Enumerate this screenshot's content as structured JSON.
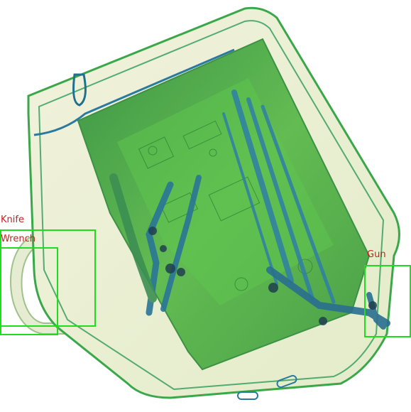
{
  "detections": [
    {
      "label": "Knife",
      "label_color": "#c81e1e",
      "box_color": "#1fdc1f"
    },
    {
      "label": "Wrench",
      "label_color": "#c81e1e",
      "box_color": "#1fdc1f"
    },
    {
      "label": "Gun",
      "label_color": "#c81e1e",
      "box_color": "#1fdc1f"
    }
  ],
  "colors": {
    "bag_outline": "#3aa84a",
    "bag_fill": "#eef0d8",
    "contents_green": "#4caf3c",
    "contents_blue": "#2f7fa6",
    "background": "#ffffff"
  }
}
